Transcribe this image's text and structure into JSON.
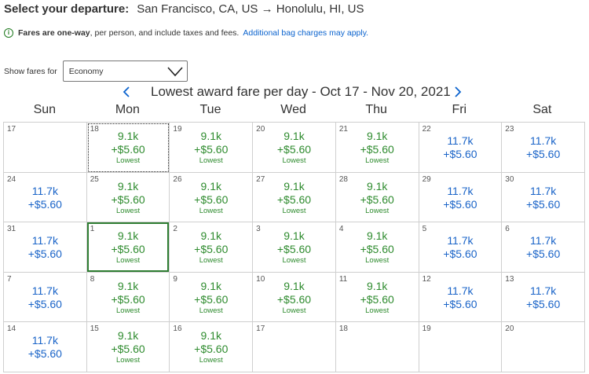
{
  "header": {
    "label": "Select your departure:",
    "route": "San Francisco, CA, US → Honolulu, HI, US"
  },
  "notice": {
    "bold_text": "Fares are one-way",
    "text": ", per person, and include taxes and fees.",
    "link": "Additional bag charges may apply."
  },
  "fares_filter": {
    "label": "Show fares for",
    "selected": "Economy"
  },
  "calendar": {
    "title": "Lowest award fare per day - Oct 17 - Nov 20, 2021",
    "weekdays": [
      "Sun",
      "Mon",
      "Tue",
      "Wed",
      "Thu",
      "Fri",
      "Sat"
    ],
    "cells": [
      {
        "day": "17",
        "miles": "",
        "tax": "",
        "note": "",
        "tone": "empty"
      },
      {
        "day": "18",
        "miles": "9.1k",
        "tax": "+$5.60",
        "note": "Lowest",
        "tone": "green",
        "state": "focused"
      },
      {
        "day": "19",
        "miles": "9.1k",
        "tax": "+$5.60",
        "note": "Lowest",
        "tone": "green"
      },
      {
        "day": "20",
        "miles": "9.1k",
        "tax": "+$5.60",
        "note": "Lowest",
        "tone": "green"
      },
      {
        "day": "21",
        "miles": "9.1k",
        "tax": "+$5.60",
        "note": "Lowest",
        "tone": "green"
      },
      {
        "day": "22",
        "miles": "11.7k",
        "tax": "+$5.60",
        "note": "",
        "tone": "blue"
      },
      {
        "day": "23",
        "miles": "11.7k",
        "tax": "+$5.60",
        "note": "",
        "tone": "blue"
      },
      {
        "day": "24",
        "miles": "11.7k",
        "tax": "+$5.60",
        "note": "",
        "tone": "blue"
      },
      {
        "day": "25",
        "miles": "9.1k",
        "tax": "+$5.60",
        "note": "Lowest",
        "tone": "green"
      },
      {
        "day": "26",
        "miles": "9.1k",
        "tax": "+$5.60",
        "note": "Lowest",
        "tone": "green"
      },
      {
        "day": "27",
        "miles": "9.1k",
        "tax": "+$5.60",
        "note": "Lowest",
        "tone": "green"
      },
      {
        "day": "28",
        "miles": "9.1k",
        "tax": "+$5.60",
        "note": "Lowest",
        "tone": "green"
      },
      {
        "day": "29",
        "miles": "11.7k",
        "tax": "+$5.60",
        "note": "",
        "tone": "blue"
      },
      {
        "day": "30",
        "miles": "11.7k",
        "tax": "+$5.60",
        "note": "",
        "tone": "blue"
      },
      {
        "day": "31",
        "miles": "11.7k",
        "tax": "+$5.60",
        "note": "",
        "tone": "blue"
      },
      {
        "day": "1",
        "miles": "9.1k",
        "tax": "+$5.60",
        "note": "Lowest",
        "tone": "green",
        "state": "selected"
      },
      {
        "day": "2",
        "miles": "9.1k",
        "tax": "+$5.60",
        "note": "Lowest",
        "tone": "green"
      },
      {
        "day": "3",
        "miles": "9.1k",
        "tax": "+$5.60",
        "note": "Lowest",
        "tone": "green"
      },
      {
        "day": "4",
        "miles": "9.1k",
        "tax": "+$5.60",
        "note": "Lowest",
        "tone": "green"
      },
      {
        "day": "5",
        "miles": "11.7k",
        "tax": "+$5.60",
        "note": "",
        "tone": "blue"
      },
      {
        "day": "6",
        "miles": "11.7k",
        "tax": "+$5.60",
        "note": "",
        "tone": "blue"
      },
      {
        "day": "7",
        "miles": "11.7k",
        "tax": "+$5.60",
        "note": "",
        "tone": "blue"
      },
      {
        "day": "8",
        "miles": "9.1k",
        "tax": "+$5.60",
        "note": "Lowest",
        "tone": "green"
      },
      {
        "day": "9",
        "miles": "9.1k",
        "tax": "+$5.60",
        "note": "Lowest",
        "tone": "green"
      },
      {
        "day": "10",
        "miles": "9.1k",
        "tax": "+$5.60",
        "note": "Lowest",
        "tone": "green"
      },
      {
        "day": "11",
        "miles": "9.1k",
        "tax": "+$5.60",
        "note": "Lowest",
        "tone": "green"
      },
      {
        "day": "12",
        "miles": "11.7k",
        "tax": "+$5.60",
        "note": "",
        "tone": "blue"
      },
      {
        "day": "13",
        "miles": "11.7k",
        "tax": "+$5.60",
        "note": "",
        "tone": "blue"
      },
      {
        "day": "14",
        "miles": "11.7k",
        "tax": "+$5.60",
        "note": "",
        "tone": "blue"
      },
      {
        "day": "15",
        "miles": "9.1k",
        "tax": "+$5.60",
        "note": "Lowest",
        "tone": "green"
      },
      {
        "day": "16",
        "miles": "9.1k",
        "tax": "+$5.60",
        "note": "Lowest",
        "tone": "green"
      },
      {
        "day": "17",
        "miles": "",
        "tax": "",
        "note": "",
        "tone": "empty"
      },
      {
        "day": "18",
        "miles": "",
        "tax": "",
        "note": "",
        "tone": "empty"
      },
      {
        "day": "19",
        "miles": "",
        "tax": "",
        "note": "",
        "tone": "empty"
      },
      {
        "day": "20",
        "miles": "",
        "tax": "",
        "note": "",
        "tone": "empty"
      }
    ]
  },
  "icons": {
    "info": "info-icon",
    "prev": "chevron-left-icon",
    "next": "chevron-right-icon",
    "dropdown": "chevron-down-icon"
  },
  "colors": {
    "lowest_fare": "#2e8b2e",
    "regular_fare": "#1a64c8",
    "link": "#0b63ce",
    "selected_border": "#2e7d32"
  }
}
